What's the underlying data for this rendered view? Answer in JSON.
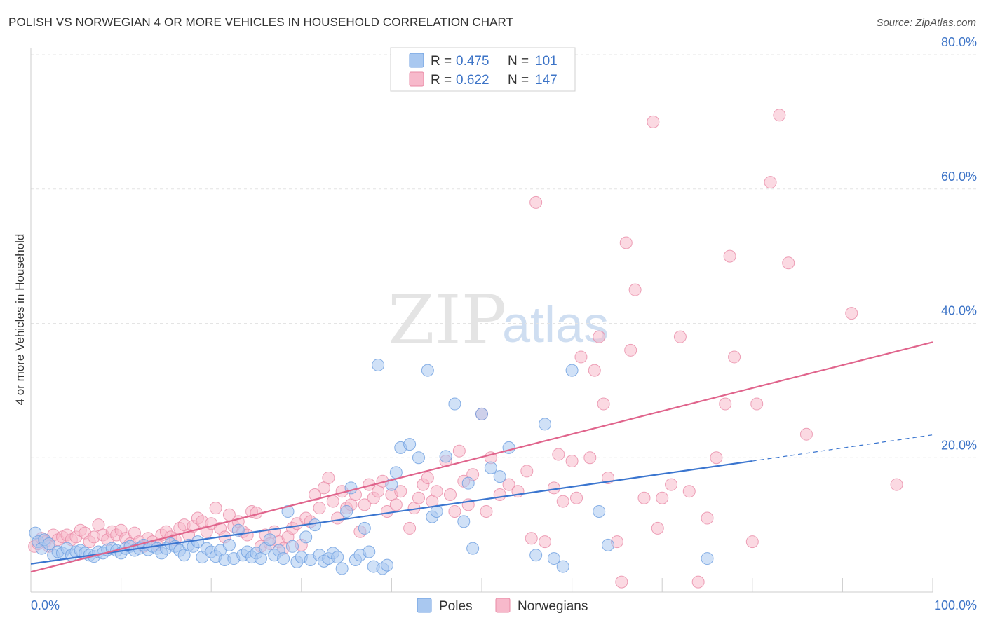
{
  "header": {
    "title": "POLISH VS NORWEGIAN 4 OR MORE VEHICLES IN HOUSEHOLD CORRELATION CHART",
    "source": "Source: ZipAtlas.com"
  },
  "watermark": {
    "zip": "ZIP",
    "atlas": "atlas"
  },
  "legend": {
    "rows": [
      {
        "r_label": "R =",
        "r_value": "0.475",
        "n_label": "N =",
        "n_value": "101",
        "color": "#a9c8f0",
        "stroke": "#6b9ee0"
      },
      {
        "r_label": "R =",
        "r_value": "0.622",
        "n_label": "N =",
        "n_value": "147",
        "color": "#f7b9cb",
        "stroke": "#e98aa6"
      }
    ]
  },
  "bottom_legend": [
    {
      "label": "Poles",
      "color": "#a9c8f0",
      "stroke": "#6b9ee0"
    },
    {
      "label": "Norwegians",
      "color": "#f7b9cb",
      "stroke": "#e98aa6"
    }
  ],
  "chart_data": {
    "type": "scatter",
    "title": "POLISH VS NORWEGIAN 4 OR MORE VEHICLES IN HOUSEHOLD CORRELATION CHART",
    "xlabel": "",
    "ylabel": "4 or more Vehicles in Household",
    "xlim": [
      0,
      100
    ],
    "ylim": [
      0,
      80
    ],
    "x_tick_labels": [
      "0.0%",
      "100.0%"
    ],
    "y_tick_labels": [
      "20.0%",
      "40.0%",
      "60.0%",
      "80.0%"
    ],
    "y_ticks": [
      20,
      40,
      60,
      80
    ],
    "grid": true,
    "legend_position": "top-center",
    "series": [
      {
        "name": "Poles",
        "color": "#6b9ee0",
        "fill": "#a9c8f0",
        "trend": {
          "x": [
            0,
            80
          ],
          "y": [
            4.2,
            19.5
          ],
          "dashed_to": [
            100,
            23.4
          ]
        },
        "points": [
          [
            0.5,
            8.8
          ],
          [
            0.8,
            7.5
          ],
          [
            1.2,
            6.5
          ],
          [
            1.5,
            7.8
          ],
          [
            2,
            7.2
          ],
          [
            2.5,
            5.5
          ],
          [
            3,
            6
          ],
          [
            3.5,
            5.8
          ],
          [
            4,
            6.5
          ],
          [
            4.5,
            5.5
          ],
          [
            5,
            6
          ],
          [
            5.5,
            6.2
          ],
          [
            6,
            5.8
          ],
          [
            6.5,
            5.5
          ],
          [
            7,
            5.3
          ],
          [
            7.5,
            6
          ],
          [
            8,
            5.8
          ],
          [
            8.5,
            6.3
          ],
          [
            9,
            6.5
          ],
          [
            9.5,
            6.2
          ],
          [
            10,
            5.8
          ],
          [
            10.5,
            6.5
          ],
          [
            11,
            6.8
          ],
          [
            11.5,
            6.2
          ],
          [
            12,
            6.5
          ],
          [
            12.5,
            7
          ],
          [
            13,
            6.3
          ],
          [
            13.5,
            6.8
          ],
          [
            14,
            6.5
          ],
          [
            14.5,
            5.8
          ],
          [
            15,
            6.5
          ],
          [
            15.5,
            7.2
          ],
          [
            16,
            6.8
          ],
          [
            16.5,
            6.2
          ],
          [
            17,
            5.5
          ],
          [
            17.5,
            7
          ],
          [
            18,
            6.8
          ],
          [
            18.5,
            7.5
          ],
          [
            19,
            5.2
          ],
          [
            19.5,
            6.5
          ],
          [
            20,
            6
          ],
          [
            20.5,
            5.3
          ],
          [
            21,
            6.2
          ],
          [
            21.5,
            4.8
          ],
          [
            22,
            7
          ],
          [
            22.5,
            5
          ],
          [
            23,
            9.2
          ],
          [
            23.5,
            5.5
          ],
          [
            24,
            6
          ],
          [
            24.5,
            5.2
          ],
          [
            25,
            5.8
          ],
          [
            25.5,
            5
          ],
          [
            26,
            6.5
          ],
          [
            26.5,
            7.8
          ],
          [
            27,
            5.5
          ],
          [
            27.5,
            6.2
          ],
          [
            28,
            5
          ],
          [
            28.5,
            12
          ],
          [
            29,
            6.8
          ],
          [
            29.5,
            4.5
          ],
          [
            30,
            5.2
          ],
          [
            30.5,
            8.2
          ],
          [
            31,
            4.8
          ],
          [
            31.5,
            10
          ],
          [
            32,
            5.5
          ],
          [
            32.5,
            4.6
          ],
          [
            33,
            5
          ],
          [
            33.5,
            5.8
          ],
          [
            34,
            5.2
          ],
          [
            34.5,
            3.5
          ],
          [
            35,
            12
          ],
          [
            35.5,
            15.5
          ],
          [
            36,
            4.8
          ],
          [
            36.5,
            5.5
          ],
          [
            37,
            9.5
          ],
          [
            37.5,
            6
          ],
          [
            38,
            3.8
          ],
          [
            38.5,
            33.8
          ],
          [
            39,
            3.5
          ],
          [
            39.5,
            4
          ],
          [
            40,
            16
          ],
          [
            40.5,
            17.8
          ],
          [
            41,
            21.5
          ],
          [
            42,
            22
          ],
          [
            43,
            20
          ],
          [
            44,
            33
          ],
          [
            44.5,
            11.2
          ],
          [
            45,
            12
          ],
          [
            46,
            20.2
          ],
          [
            47,
            28
          ],
          [
            48,
            10.5
          ],
          [
            48.5,
            16.2
          ],
          [
            49,
            6.5
          ],
          [
            50,
            26.5
          ],
          [
            51,
            18.5
          ],
          [
            52,
            17.2
          ],
          [
            53,
            21.5
          ],
          [
            56,
            5.5
          ],
          [
            57,
            25
          ],
          [
            58,
            5
          ],
          [
            59,
            3.8
          ],
          [
            60,
            33
          ],
          [
            63,
            12
          ],
          [
            64,
            7
          ],
          [
            75,
            5
          ]
        ]
      },
      {
        "name": "Norwegians",
        "color": "#e98aa6",
        "fill": "#f7b9cb",
        "trend": {
          "x": [
            0,
            100
          ],
          "y": [
            3,
            37.2
          ]
        },
        "points": [
          [
            0.4,
            6.8
          ],
          [
            0.8,
            7.2
          ],
          [
            1.2,
            8
          ],
          [
            1.6,
            7.5
          ],
          [
            2,
            6.8
          ],
          [
            2.5,
            8.5
          ],
          [
            3,
            7.8
          ],
          [
            3.5,
            8.2
          ],
          [
            4,
            8.5
          ],
          [
            4.5,
            7.8
          ],
          [
            5,
            8.2
          ],
          [
            5.5,
            9.2
          ],
          [
            6,
            8.8
          ],
          [
            6.5,
            7.5
          ],
          [
            7,
            8.2
          ],
          [
            7.5,
            10
          ],
          [
            8,
            8.5
          ],
          [
            8.5,
            7.8
          ],
          [
            9,
            9
          ],
          [
            9.5,
            8.5
          ],
          [
            10,
            9.2
          ],
          [
            10.5,
            8
          ],
          [
            11,
            7.2
          ],
          [
            11.5,
            8.8
          ],
          [
            12,
            7.5
          ],
          [
            12.5,
            6.8
          ],
          [
            13,
            8
          ],
          [
            13.5,
            7.5
          ],
          [
            14,
            7
          ],
          [
            14.5,
            8.5
          ],
          [
            15,
            9
          ],
          [
            15.5,
            8.2
          ],
          [
            16,
            7.8
          ],
          [
            16.5,
            9.5
          ],
          [
            17,
            10
          ],
          [
            17.5,
            8.5
          ],
          [
            18,
            9.8
          ],
          [
            18.5,
            11
          ],
          [
            19,
            10.5
          ],
          [
            19.5,
            9
          ],
          [
            20,
            10.2
          ],
          [
            20.5,
            12.5
          ],
          [
            21,
            9.5
          ],
          [
            21.5,
            8.2
          ],
          [
            22,
            11.5
          ],
          [
            22.5,
            9.8
          ],
          [
            23,
            10.5
          ],
          [
            23.5,
            9
          ],
          [
            24,
            8.5
          ],
          [
            24.5,
            12
          ],
          [
            25,
            11.8
          ],
          [
            25.5,
            6.8
          ],
          [
            26,
            8.5
          ],
          [
            26.5,
            7.2
          ],
          [
            27,
            9
          ],
          [
            27.5,
            7.5
          ],
          [
            28,
            6.5
          ],
          [
            28.5,
            8.2
          ],
          [
            29,
            9.5
          ],
          [
            29.5,
            10.2
          ],
          [
            30,
            7
          ],
          [
            30.5,
            11
          ],
          [
            31,
            10.5
          ],
          [
            31.5,
            14.5
          ],
          [
            32,
            12.5
          ],
          [
            32.5,
            15.5
          ],
          [
            33,
            17
          ],
          [
            33.5,
            13.5
          ],
          [
            34,
            11
          ],
          [
            34.5,
            15
          ],
          [
            35,
            12.5
          ],
          [
            35.5,
            13
          ],
          [
            36,
            14.5
          ],
          [
            36.5,
            9
          ],
          [
            37,
            13
          ],
          [
            37.5,
            16
          ],
          [
            38,
            14
          ],
          [
            38.5,
            15
          ],
          [
            39,
            16.5
          ],
          [
            39.5,
            12
          ],
          [
            40,
            14.5
          ],
          [
            40.5,
            13
          ],
          [
            41,
            15
          ],
          [
            42,
            9.5
          ],
          [
            42.5,
            12.5
          ],
          [
            43,
            14
          ],
          [
            43.5,
            16
          ],
          [
            44,
            17
          ],
          [
            44.5,
            13.5
          ],
          [
            45,
            15
          ],
          [
            46,
            19.5
          ],
          [
            46.5,
            14.5
          ],
          [
            47,
            12
          ],
          [
            47.5,
            21
          ],
          [
            48,
            16.5
          ],
          [
            48.5,
            13
          ],
          [
            49,
            17.5
          ],
          [
            50,
            26.5
          ],
          [
            50.5,
            12
          ],
          [
            51,
            20
          ],
          [
            52,
            14.5
          ],
          [
            53,
            16
          ],
          [
            54,
            15
          ],
          [
            55,
            18
          ],
          [
            55.5,
            8
          ],
          [
            56,
            58
          ],
          [
            57,
            7.5
          ],
          [
            58,
            15.5
          ],
          [
            58.5,
            20.5
          ],
          [
            59,
            13.5
          ],
          [
            60,
            19.5
          ],
          [
            60.5,
            14
          ],
          [
            61,
            35
          ],
          [
            62,
            20
          ],
          [
            62.5,
            33
          ],
          [
            63,
            38
          ],
          [
            63.5,
            28
          ],
          [
            64,
            17
          ],
          [
            65,
            7.5
          ],
          [
            65.5,
            1.5
          ],
          [
            66,
            52
          ],
          [
            66.5,
            36
          ],
          [
            67,
            45
          ],
          [
            68,
            14
          ],
          [
            69,
            70
          ],
          [
            69.5,
            9.5
          ],
          [
            70,
            14
          ],
          [
            71,
            16
          ],
          [
            72,
            38
          ],
          [
            73,
            15
          ],
          [
            74,
            1.5
          ],
          [
            75,
            11
          ],
          [
            76,
            20
          ],
          [
            77,
            28
          ],
          [
            77.5,
            50
          ],
          [
            78,
            35
          ],
          [
            80,
            7.5
          ],
          [
            80.5,
            28
          ],
          [
            82,
            61
          ],
          [
            83,
            71
          ],
          [
            84,
            49
          ],
          [
            86,
            23.5
          ],
          [
            91,
            41.5
          ],
          [
            96,
            16
          ]
        ]
      }
    ]
  }
}
